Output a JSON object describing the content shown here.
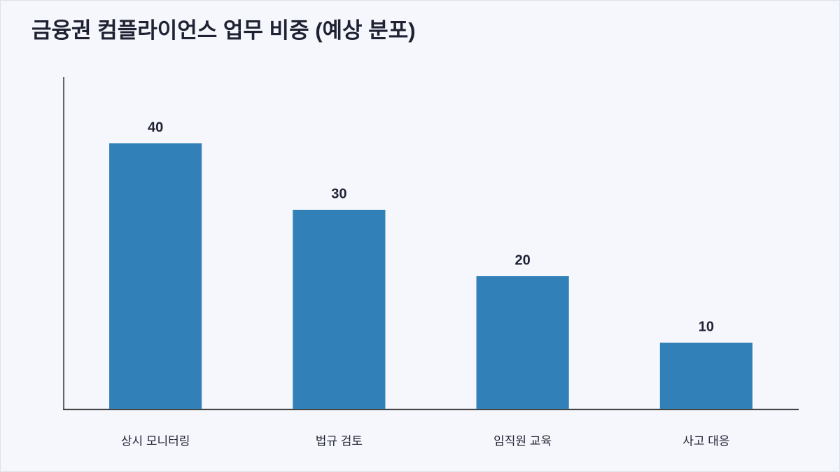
{
  "chart_data": {
    "type": "bar",
    "title": "금융권 컴플라이언스 업무 비중 (예상 분포)",
    "categories": [
      "상시 모니터링",
      "법규 검토",
      "임직원 교육",
      "사고 대응"
    ],
    "values": [
      40,
      30,
      20,
      10
    ],
    "color": "#3280b8",
    "ylim": [
      0,
      50
    ],
    "grid": false
  }
}
